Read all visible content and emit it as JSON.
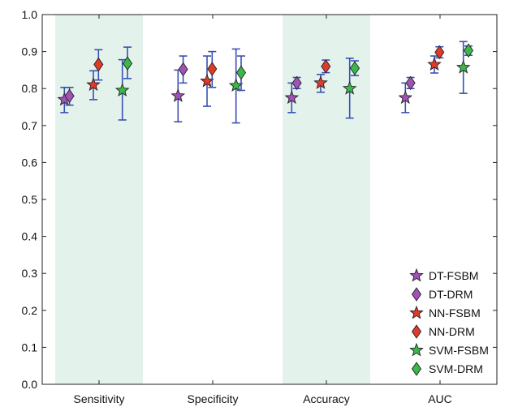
{
  "chart_data": {
    "type": "scatter",
    "title": "",
    "xlabel": "",
    "ylabel": "",
    "ylim": [
      0.0,
      1.0
    ],
    "yticks": [
      "0.0",
      "0.1",
      "0.2",
      "0.3",
      "0.4",
      "0.5",
      "0.6",
      "0.7",
      "0.8",
      "0.9",
      "1.0"
    ],
    "categories": [
      "Sensitivity",
      "Specificity",
      "Accuracy",
      "AUC"
    ],
    "shaded_categories": [
      "Sensitivity",
      "Accuracy"
    ],
    "shade_color": "#e3f3ec",
    "errorbar_color": "#3a4fb5",
    "grid": false,
    "legend_position": "lower-right",
    "series": [
      {
        "name": "DT-FSBM",
        "marker": "star",
        "color": "#a052b5",
        "values": [
          0.77,
          0.78,
          0.775,
          0.775
        ],
        "lower": [
          0.735,
          0.71,
          0.735,
          0.735
        ],
        "upper": [
          0.803,
          0.85,
          0.815,
          0.815
        ]
      },
      {
        "name": "DT-DRM",
        "marker": "diamond",
        "color": "#a052b5",
        "values": [
          0.78,
          0.852,
          0.815,
          0.815
        ],
        "lower": [
          0.755,
          0.815,
          0.8,
          0.8
        ],
        "upper": [
          0.803,
          0.888,
          0.83,
          0.83
        ]
      },
      {
        "name": "NN-FSBM",
        "marker": "star",
        "color": "#e03a2a",
        "values": [
          0.81,
          0.82,
          0.815,
          0.865
        ],
        "lower": [
          0.77,
          0.752,
          0.79,
          0.842
        ],
        "upper": [
          0.848,
          0.888,
          0.838,
          0.888
        ]
      },
      {
        "name": "NN-DRM",
        "marker": "diamond",
        "color": "#e03a2a",
        "values": [
          0.865,
          0.853,
          0.86,
          0.898
        ],
        "lower": [
          0.823,
          0.803,
          0.843,
          0.883
        ],
        "upper": [
          0.905,
          0.9,
          0.877,
          0.913
        ]
      },
      {
        "name": "SVM-FSBM",
        "marker": "star",
        "color": "#3cb84a",
        "values": [
          0.795,
          0.808,
          0.8,
          0.857
        ],
        "lower": [
          0.715,
          0.707,
          0.72,
          0.787
        ],
        "upper": [
          0.878,
          0.907,
          0.882,
          0.927
        ]
      },
      {
        "name": "SVM-DRM",
        "marker": "diamond",
        "color": "#3cb84a",
        "values": [
          0.868,
          0.843,
          0.855,
          0.903
        ],
        "lower": [
          0.827,
          0.795,
          0.835,
          0.89
        ],
        "upper": [
          0.912,
          0.888,
          0.875,
          0.915
        ]
      }
    ]
  }
}
